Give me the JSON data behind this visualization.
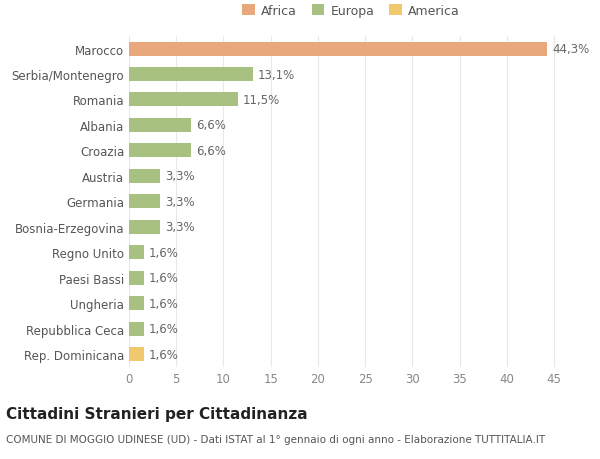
{
  "categories": [
    "Rep. Dominicana",
    "Repubblica Ceca",
    "Ungheria",
    "Paesi Bassi",
    "Regno Unito",
    "Bosnia-Erzegovina",
    "Germania",
    "Austria",
    "Croazia",
    "Albania",
    "Romania",
    "Serbia/Montenegro",
    "Marocco"
  ],
  "values": [
    1.6,
    1.6,
    1.6,
    1.6,
    1.6,
    3.3,
    3.3,
    3.3,
    6.6,
    6.6,
    11.5,
    13.1,
    44.3
  ],
  "labels": [
    "1,6%",
    "1,6%",
    "1,6%",
    "1,6%",
    "1,6%",
    "3,3%",
    "3,3%",
    "3,3%",
    "6,6%",
    "6,6%",
    "11,5%",
    "13,1%",
    "44,3%"
  ],
  "colors": [
    "#f0c96e",
    "#a8c080",
    "#a8c080",
    "#a8c080",
    "#a8c080",
    "#a8c080",
    "#a8c080",
    "#a8c080",
    "#a8c080",
    "#a8c080",
    "#a8c080",
    "#a8c080",
    "#e8a87c"
  ],
  "legend_labels": [
    "Africa",
    "Europa",
    "America"
  ],
  "legend_colors": [
    "#e8a87c",
    "#a8c080",
    "#f0c96e"
  ],
  "title": "Cittadini Stranieri per Cittadinanza",
  "subtitle": "COMUNE DI MOGGIO UDINESE (UD) - Dati ISTAT al 1° gennaio di ogni anno - Elaborazione TUTTITALIA.IT",
  "xlim": [
    0,
    47
  ],
  "xticks": [
    0,
    5,
    10,
    15,
    20,
    25,
    30,
    35,
    40,
    45
  ],
  "background_color": "#ffffff",
  "grid_color": "#e8e8e8",
  "bar_height": 0.55,
  "title_fontsize": 11,
  "subtitle_fontsize": 7.5,
  "tick_fontsize": 8.5,
  "label_fontsize": 8.5
}
